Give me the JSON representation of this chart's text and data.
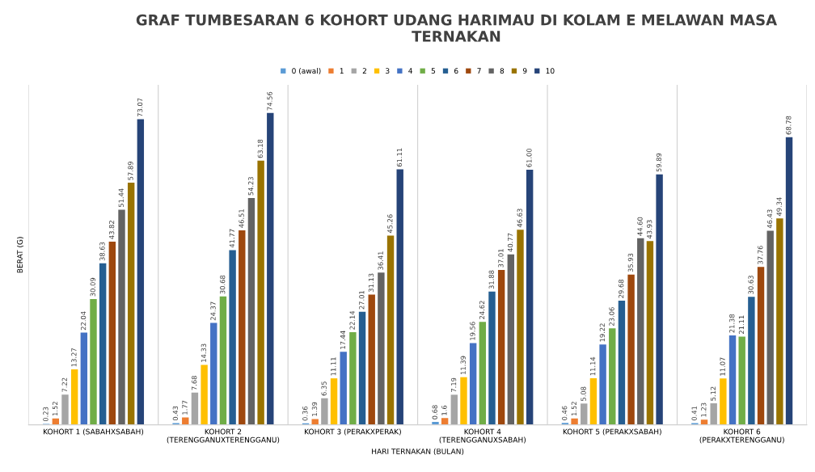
{
  "chart_data": {
    "type": "bar",
    "title": "GRAF TUMBESARAN 6 KOHORT UDANG HARIMAU DI KOLAM E MELAWAN MASA TERNAKAN",
    "xlabel": "HARI TERNAKAN (BULAN)",
    "ylabel": "BERAT (G)",
    "categories": [
      "KOHORT 1 (SABAHXSABAH)",
      "KOHORT 2\n(TERENGGANUXTERENGGANU)",
      "KOHORT 3 (PERAKXPERAK)",
      "KOHORT 4\n(TERENGGANUXSABAH)",
      "KOHORT 5 (PERAKXSABAH)",
      "KOHORT 6\n(PERAKXTERENGGANU)"
    ],
    "series": [
      {
        "name": "0 (awal)",
        "color": "#5b9bd5",
        "values": [
          0.23,
          0.43,
          0.36,
          0.68,
          0.46,
          0.41
        ],
        "value_labels": [
          "0.23",
          "0.43",
          "0.36",
          "0.68",
          "0.46",
          "0.41"
        ]
      },
      {
        "name": "1",
        "color": "#ed7d31",
        "values": [
          1.52,
          1.77,
          1.39,
          1.6,
          1.52,
          1.23
        ],
        "value_labels": [
          "1.52",
          "1.77",
          "1.39",
          "1.6",
          "1.52",
          "1.23"
        ]
      },
      {
        "name": "2",
        "color": "#a5a5a5",
        "values": [
          7.22,
          7.68,
          6.35,
          7.19,
          5.08,
          5.12
        ],
        "value_labels": [
          "7.22",
          "7.68",
          "6.35",
          "7.19",
          "5.08",
          "5.12"
        ]
      },
      {
        "name": "3",
        "color": "#ffc000",
        "values": [
          13.27,
          14.33,
          11.11,
          11.39,
          11.14,
          11.07
        ],
        "value_labels": [
          "13.27",
          "14.33",
          "11.11",
          "11.39",
          "11.14",
          "11.07"
        ]
      },
      {
        "name": "4",
        "color": "#4472c4",
        "values": [
          22.04,
          24.37,
          17.44,
          19.56,
          19.22,
          21.38
        ],
        "value_labels": [
          "22.04",
          "24.37",
          "17.44",
          "19.56",
          "19.22",
          "21.38"
        ]
      },
      {
        "name": "5",
        "color": "#70ad47",
        "values": [
          30.09,
          30.68,
          22.14,
          24.62,
          23.06,
          21.11
        ],
        "value_labels": [
          "30.09",
          "30.68",
          "22.14",
          "24.62",
          "23.06",
          "21.11"
        ]
      },
      {
        "name": "6",
        "color": "#255e91",
        "values": [
          38.63,
          41.77,
          27.01,
          31.88,
          29.68,
          30.63
        ],
        "value_labels": [
          "38.63",
          "41.77",
          "27.01",
          "31.88",
          "29.68",
          "30.63"
        ]
      },
      {
        "name": "7",
        "color": "#9e480e",
        "values": [
          43.82,
          46.51,
          31.13,
          37.01,
          35.93,
          37.76
        ],
        "value_labels": [
          "43.82",
          "46.51",
          "31.13",
          "37.01",
          "35.93",
          "37.76"
        ]
      },
      {
        "name": "8",
        "color": "#636363",
        "values": [
          51.44,
          54.23,
          36.41,
          40.77,
          44.6,
          46.43
        ],
        "value_labels": [
          "51.44",
          "54.23",
          "36.41",
          "40.77",
          "44.60",
          "46.43"
        ]
      },
      {
        "name": "9",
        "color": "#997300",
        "values": [
          57.89,
          63.18,
          45.26,
          46.63,
          43.93,
          49.34
        ],
        "value_labels": [
          "57.89",
          "63.18",
          "45.26",
          "46.63",
          "43.93",
          "49.34"
        ]
      },
      {
        "name": "10",
        "color": "#264478",
        "values": [
          73.07,
          74.56,
          61.11,
          61.0,
          59.89,
          68.78
        ],
        "value_labels": [
          "73.07",
          "74.56",
          "61.11",
          "61.00",
          "59.89",
          "68.78"
        ]
      }
    ],
    "legend": "top",
    "grid": "x",
    "tick_labels": "x"
  }
}
